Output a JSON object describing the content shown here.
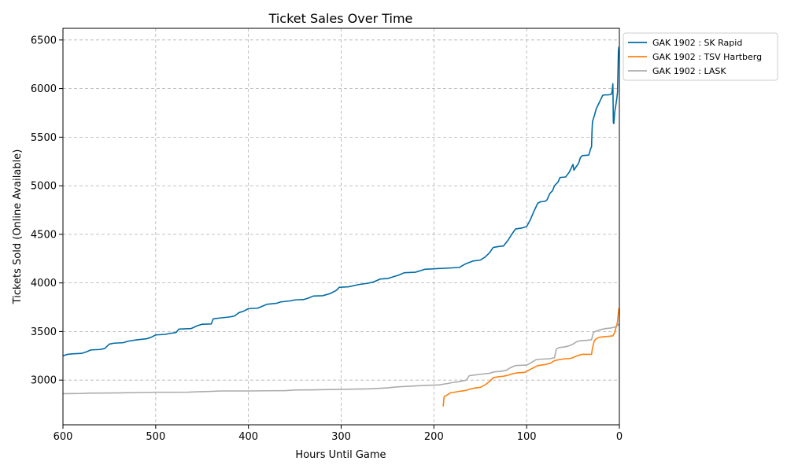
{
  "chart_data": {
    "type": "line",
    "title": "Ticket Sales Over Time",
    "xlabel": "Hours Until Game",
    "ylabel": "Tickets Sold (Online Available)",
    "xlim": [
      600,
      0
    ],
    "ylim": [
      2540,
      6620
    ],
    "x_ticks": [
      600,
      500,
      400,
      300,
      200,
      100,
      0
    ],
    "y_ticks": [
      3000,
      3500,
      4000,
      4500,
      5000,
      5500,
      6000,
      6500
    ],
    "grid": true,
    "legend_position": "outside-top-right",
    "series": [
      {
        "name": "GAK 1902 : SK Rapid",
        "color": "#006ba4",
        "points": [
          [
            600,
            3250
          ],
          [
            595,
            3265
          ],
          [
            590,
            3270
          ],
          [
            580,
            3275
          ],
          [
            575,
            3290
          ],
          [
            570,
            3310
          ],
          [
            560,
            3315
          ],
          [
            555,
            3325
          ],
          [
            550,
            3370
          ],
          [
            545,
            3380
          ],
          [
            535,
            3385
          ],
          [
            530,
            3400
          ],
          [
            520,
            3415
          ],
          [
            510,
            3425
          ],
          [
            505,
            3440
          ],
          [
            500,
            3465
          ],
          [
            490,
            3470
          ],
          [
            485,
            3480
          ],
          [
            478,
            3490
          ],
          [
            475,
            3525
          ],
          [
            462,
            3530
          ],
          [
            455,
            3560
          ],
          [
            450,
            3575
          ],
          [
            440,
            3578
          ],
          [
            438,
            3630
          ],
          [
            430,
            3640
          ],
          [
            420,
            3650
          ],
          [
            415,
            3660
          ],
          [
            410,
            3695
          ],
          [
            405,
            3710
          ],
          [
            400,
            3735
          ],
          [
            390,
            3740
          ],
          [
            385,
            3760
          ],
          [
            380,
            3780
          ],
          [
            370,
            3790
          ],
          [
            365,
            3805
          ],
          [
            355,
            3815
          ],
          [
            350,
            3825
          ],
          [
            340,
            3830
          ],
          [
            335,
            3845
          ],
          [
            330,
            3865
          ],
          [
            320,
            3868
          ],
          [
            312,
            3890
          ],
          [
            305,
            3925
          ],
          [
            302,
            3955
          ],
          [
            292,
            3960
          ],
          [
            285,
            3975
          ],
          [
            280,
            3985
          ],
          [
            272,
            3995
          ],
          [
            265,
            4010
          ],
          [
            258,
            4040
          ],
          [
            250,
            4045
          ],
          [
            245,
            4060
          ],
          [
            238,
            4080
          ],
          [
            232,
            4105
          ],
          [
            220,
            4110
          ],
          [
            215,
            4125
          ],
          [
            210,
            4140
          ],
          [
            200,
            4145
          ],
          [
            195,
            4148
          ],
          [
            190,
            4150
          ],
          [
            180,
            4155
          ],
          [
            172,
            4160
          ],
          [
            170,
            4175
          ],
          [
            165,
            4200
          ],
          [
            158,
            4225
          ],
          [
            150,
            4235
          ],
          [
            145,
            4265
          ],
          [
            140,
            4310
          ],
          [
            136,
            4365
          ],
          [
            130,
            4375
          ],
          [
            125,
            4380
          ],
          [
            120,
            4440
          ],
          [
            116,
            4500
          ],
          [
            112,
            4555
          ],
          [
            105,
            4565
          ],
          [
            100,
            4580
          ],
          [
            96,
            4650
          ],
          [
            92,
            4740
          ],
          [
            88,
            4820
          ],
          [
            85,
            4835
          ],
          [
            80,
            4840
          ],
          [
            78,
            4855
          ],
          [
            75,
            4920
          ],
          [
            72,
            4950
          ],
          [
            70,
            5000
          ],
          [
            66,
            5040
          ],
          [
            64,
            5085
          ],
          [
            58,
            5090
          ],
          [
            54,
            5140
          ],
          [
            52,
            5180
          ],
          [
            50,
            5220
          ],
          [
            49,
            5160
          ],
          [
            47,
            5190
          ],
          [
            44,
            5230
          ],
          [
            42,
            5290
          ],
          [
            40,
            5310
          ],
          [
            33,
            5315
          ],
          [
            31,
            5380
          ],
          [
            30,
            5400
          ],
          [
            29.5,
            5560
          ],
          [
            29,
            5660
          ],
          [
            27,
            5720
          ],
          [
            25,
            5790
          ],
          [
            22,
            5850
          ],
          [
            20,
            5890
          ],
          [
            18,
            5930
          ],
          [
            16,
            5935
          ],
          [
            12,
            5935
          ],
          [
            9,
            5940
          ],
          [
            8,
            5960
          ],
          [
            7,
            6050
          ],
          [
            6.5,
            5650
          ],
          [
            6,
            5640
          ],
          [
            5,
            5760
          ],
          [
            4,
            5820
          ],
          [
            3,
            5880
          ],
          [
            2,
            5960
          ],
          [
            1.5,
            6180
          ],
          [
            1,
            6380
          ],
          [
            0.5,
            6430
          ]
        ]
      },
      {
        "name": "GAK 1902 :  TSV Hartberg",
        "color": "#ff800e",
        "points": [
          [
            190,
            2730
          ],
          [
            189,
            2830
          ],
          [
            185,
            2850
          ],
          [
            182,
            2870
          ],
          [
            178,
            2875
          ],
          [
            172,
            2885
          ],
          [
            165,
            2895
          ],
          [
            160,
            2910
          ],
          [
            155,
            2920
          ],
          [
            150,
            2925
          ],
          [
            145,
            2950
          ],
          [
            140,
            2985
          ],
          [
            136,
            3025
          ],
          [
            130,
            3035
          ],
          [
            125,
            3040
          ],
          [
            120,
            3050
          ],
          [
            115,
            3065
          ],
          [
            110,
            3075
          ],
          [
            102,
            3080
          ],
          [
            98,
            3100
          ],
          [
            95,
            3115
          ],
          [
            92,
            3130
          ],
          [
            88,
            3150
          ],
          [
            84,
            3155
          ],
          [
            80,
            3160
          ],
          [
            74,
            3175
          ],
          [
            70,
            3200
          ],
          [
            65,
            3210
          ],
          [
            62,
            3215
          ],
          [
            58,
            3220
          ],
          [
            55,
            3220
          ],
          [
            52,
            3225
          ],
          [
            48,
            3240
          ],
          [
            44,
            3255
          ],
          [
            40,
            3265
          ],
          [
            34,
            3265
          ],
          [
            30,
            3265
          ],
          [
            29,
            3330
          ],
          [
            27,
            3405
          ],
          [
            25,
            3425
          ],
          [
            22,
            3440
          ],
          [
            18,
            3445
          ],
          [
            12,
            3450
          ],
          [
            7,
            3455
          ],
          [
            5,
            3490
          ],
          [
            4,
            3530
          ],
          [
            3,
            3560
          ],
          [
            2,
            3600
          ],
          [
            1.2,
            3680
          ],
          [
            0.5,
            3740
          ]
        ]
      },
      {
        "name": "GAK 1902 : LASK",
        "color": "#ababab",
        "points": [
          [
            600,
            2860
          ],
          [
            580,
            2862
          ],
          [
            570,
            2866
          ],
          [
            540,
            2868
          ],
          [
            520,
            2872
          ],
          [
            500,
            2875
          ],
          [
            480,
            2875
          ],
          [
            465,
            2876
          ],
          [
            455,
            2880
          ],
          [
            445,
            2882
          ],
          [
            430,
            2888
          ],
          [
            400,
            2888
          ],
          [
            380,
            2890
          ],
          [
            360,
            2892
          ],
          [
            350,
            2898
          ],
          [
            330,
            2900
          ],
          [
            320,
            2902
          ],
          [
            300,
            2905
          ],
          [
            270,
            2910
          ],
          [
            260,
            2915
          ],
          [
            250,
            2920
          ],
          [
            240,
            2930
          ],
          [
            230,
            2935
          ],
          [
            220,
            2940
          ],
          [
            210,
            2945
          ],
          [
            200,
            2948
          ],
          [
            195,
            2950
          ],
          [
            185,
            2965
          ],
          [
            180,
            2975
          ],
          [
            175,
            2980
          ],
          [
            170,
            2990
          ],
          [
            165,
            3000
          ],
          [
            162,
            3045
          ],
          [
            158,
            3050
          ],
          [
            150,
            3060
          ],
          [
            140,
            3070
          ],
          [
            135,
            3085
          ],
          [
            128,
            3090
          ],
          [
            122,
            3100
          ],
          [
            118,
            3125
          ],
          [
            112,
            3150
          ],
          [
            100,
            3155
          ],
          [
            95,
            3180
          ],
          [
            90,
            3210
          ],
          [
            85,
            3215
          ],
          [
            75,
            3220
          ],
          [
            70,
            3230
          ],
          [
            68,
            3320
          ],
          [
            65,
            3335
          ],
          [
            60,
            3340
          ],
          [
            55,
            3350
          ],
          [
            50,
            3370
          ],
          [
            46,
            3395
          ],
          [
            42,
            3405
          ],
          [
            35,
            3410
          ],
          [
            30,
            3415
          ],
          [
            28,
            3490
          ],
          [
            25,
            3505
          ],
          [
            20,
            3520
          ],
          [
            15,
            3530
          ],
          [
            10,
            3535
          ],
          [
            5,
            3545
          ],
          [
            2,
            3560
          ],
          [
            0.5,
            3580
          ]
        ]
      }
    ]
  }
}
